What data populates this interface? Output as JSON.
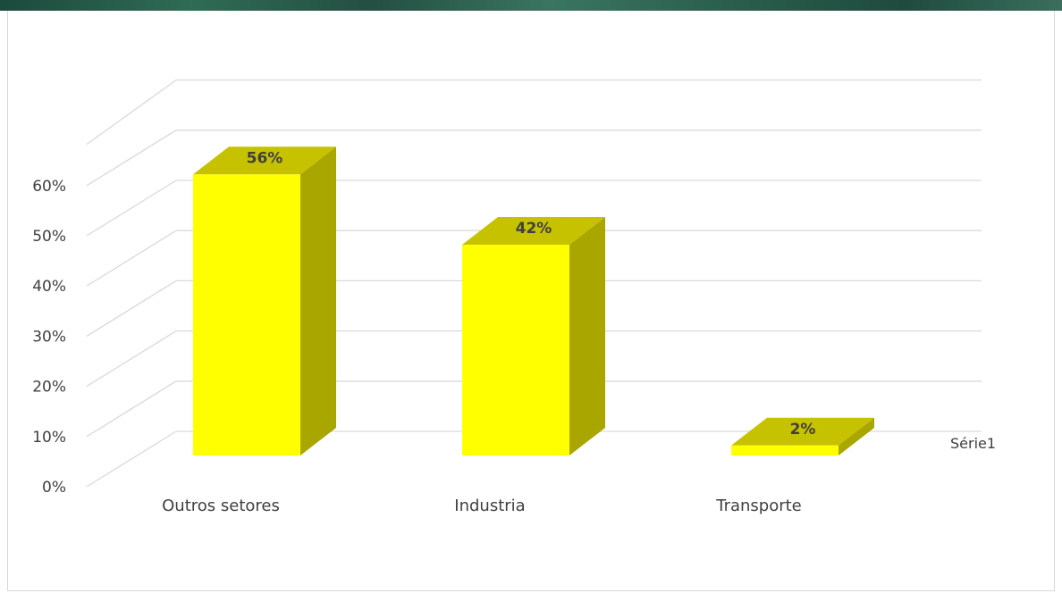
{
  "chart_data": {
    "type": "bar",
    "categories": [
      "Outros setores",
      "Industria",
      "Transporte"
    ],
    "series": [
      {
        "name": "Série1",
        "values": [
          56,
          42,
          2
        ]
      }
    ],
    "data_labels": [
      "56%",
      "42%",
      "2%"
    ],
    "yticks": [
      "0%",
      "10%",
      "20%",
      "30%",
      "40%",
      "50%",
      "60%"
    ],
    "ylim": [
      0,
      60
    ],
    "grid": true,
    "legend_position": "right",
    "style": "3d-column",
    "colors": {
      "front": "#ffff00",
      "top": "#c7c200",
      "side": "#a9a600",
      "grid": "#d9d9d9"
    }
  }
}
